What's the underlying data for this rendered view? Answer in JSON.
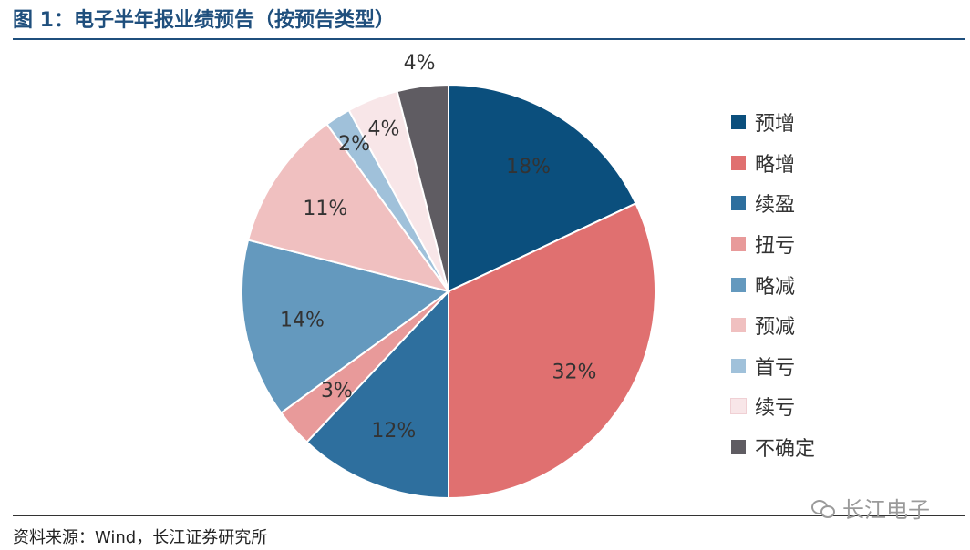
{
  "title": "图 1：电子半年报业绩预告（按预告类型）",
  "source": "资料来源：Wind，长江证券研究所",
  "watermark": "长江电子",
  "chart_data": {
    "type": "pie",
    "start_angle_deg": 0,
    "direction": "clockwise",
    "slices": [
      {
        "label": "预增",
        "value": 18,
        "display": "18%",
        "color": "#0b4f7d"
      },
      {
        "label": "略增",
        "value": 32,
        "display": "32%",
        "color": "#e07070"
      },
      {
        "label": "续盈",
        "value": 12,
        "display": "12%",
        "color": "#2e6f9e"
      },
      {
        "label": "扭亏",
        "value": 3,
        "display": "3%",
        "color": "#e89a9a"
      },
      {
        "label": "略减",
        "value": 14,
        "display": "14%",
        "color": "#6499be"
      },
      {
        "label": "预减",
        "value": 11,
        "display": "11%",
        "color": "#f0c0c0"
      },
      {
        "label": "首亏",
        "value": 2,
        "display": "2%",
        "color": "#a0c1da"
      },
      {
        "label": "续亏",
        "value": 4,
        "display": "4%",
        "color": "#f8e6e8"
      },
      {
        "label": "不确定",
        "value": 4,
        "display": "4%",
        "color": "#5f5c62"
      }
    ]
  }
}
